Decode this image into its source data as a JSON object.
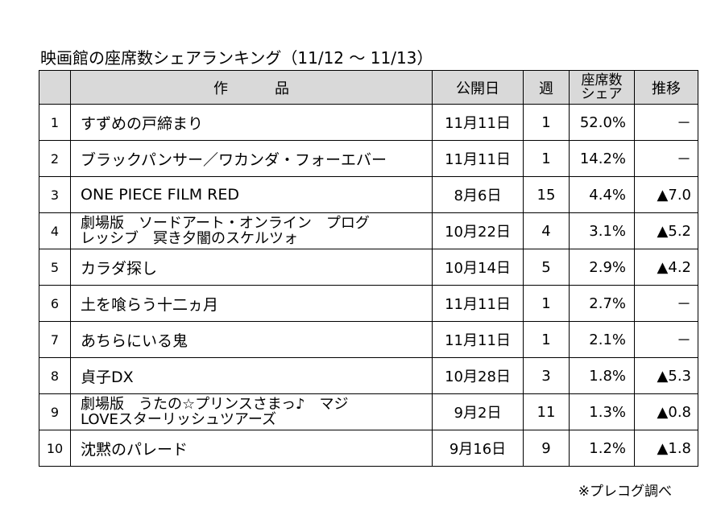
{
  "title": "映画館の座席数シェアランキング（11/12 ～ 11/13）",
  "headers": {
    "rank": "",
    "title_chars": [
      "作",
      "品"
    ],
    "date": "公開日",
    "week": "週",
    "share": "座席数\nシェア",
    "trend": "推移"
  },
  "rows": [
    {
      "rank": "1",
      "title": "すずめの戸締まり",
      "date": "11月11日",
      "week": "1",
      "share": "52.0%",
      "trend": "－"
    },
    {
      "rank": "2",
      "title": "ブラックパンサー／ワカンダ・フォーエバー",
      "date": "11月11日",
      "week": "1",
      "share": "14.2%",
      "trend": "－"
    },
    {
      "rank": "3",
      "title": "ONE PIECE FILM RED",
      "date": "8月6日",
      "week": "15",
      "share": "4.4%",
      "trend": "▲7.0"
    },
    {
      "rank": "4",
      "title": "劇場版　ソードアート・オンライン　プログ\nレッシブ　冥き夕闇のスケルツォ",
      "date": "10月22日",
      "week": "4",
      "share": "3.1%",
      "trend": "▲5.2"
    },
    {
      "rank": "5",
      "title": "カラダ探し",
      "date": "10月14日",
      "week": "5",
      "share": "2.9%",
      "trend": "▲4.2"
    },
    {
      "rank": "6",
      "title": "土を喰らう十二ヵ月",
      "date": "11月11日",
      "week": "1",
      "share": "2.7%",
      "trend": "－"
    },
    {
      "rank": "7",
      "title": "あちらにいる鬼",
      "date": "11月11日",
      "week": "1",
      "share": "2.1%",
      "trend": "－"
    },
    {
      "rank": "8",
      "title": "貞子DX",
      "date": "10月28日",
      "week": "3",
      "share": "1.8%",
      "trend": "▲5.3"
    },
    {
      "rank": "9",
      "title": "劇場版　うたの☆プリンスさまっ♪　マジ\nLOVEスターリッシュツアーズ",
      "date": "9月2日",
      "week": "11",
      "share": "1.3%",
      "trend": "▲0.8"
    },
    {
      "rank": "10",
      "title": "沈黙のパレード",
      "date": "9月16日",
      "week": "9",
      "share": "1.2%",
      "trend": "▲1.8"
    }
  ],
  "note": "※プレコグ調べ"
}
